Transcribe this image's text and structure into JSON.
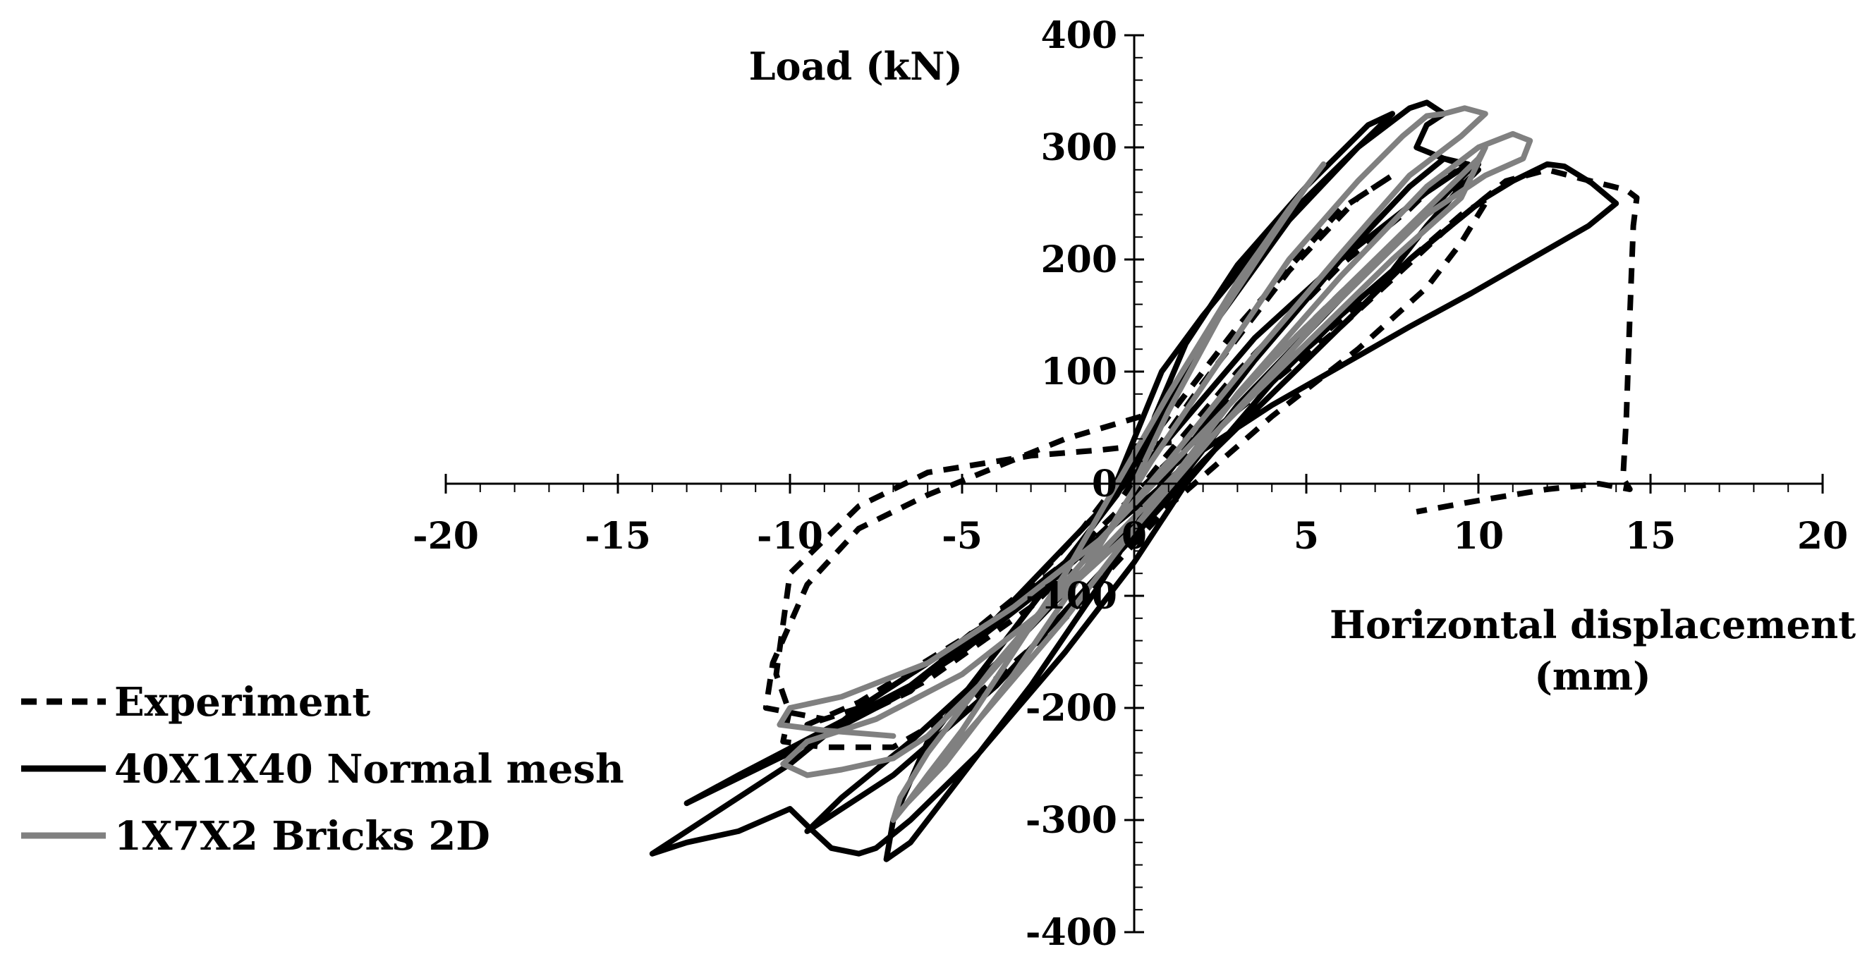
{
  "chart_data": {
    "type": "line",
    "title": "",
    "xlabel": "Horizontal displacement (mm)",
    "xlabel_lines": [
      "Horizontal displacement",
      "(mm)"
    ],
    "ylabel": "Load (kN)",
    "xlim": [
      -20,
      20
    ],
    "ylim": [
      -400,
      400
    ],
    "x_ticks": [
      -20,
      -15,
      -10,
      -5,
      0,
      5,
      10,
      15,
      20
    ],
    "y_ticks": [
      -400,
      -300,
      -200,
      -100,
      0,
      100,
      200,
      300,
      400
    ],
    "x_tick_labels": [
      "-20",
      "-15",
      "-10",
      "-5",
      "0",
      "5",
      "10",
      "15",
      "20"
    ],
    "y_tick_labels": [
      "-400",
      "-300",
      "-200",
      "-100",
      "0",
      "100",
      "200",
      "300",
      "400"
    ],
    "grid": false,
    "legend_position": "bottom-left",
    "series": [
      {
        "name": "Experiment",
        "color": "#000000",
        "dash": "dashed",
        "points": [
          [
            -0.3,
            -10
          ],
          [
            2,
            90
          ],
          [
            4.5,
            190
          ],
          [
            6.5,
            255
          ],
          [
            7.5,
            275
          ],
          [
            6,
            245
          ],
          [
            3,
            140
          ],
          [
            0.5,
            40
          ],
          [
            -1.5,
            -40
          ],
          [
            -3,
            -90
          ],
          [
            -5,
            -140
          ],
          [
            -6.5,
            -185
          ],
          [
            -7.5,
            -200
          ],
          [
            -6,
            -175
          ],
          [
            -3,
            -110
          ],
          [
            -1,
            -50
          ],
          [
            0.8,
            20
          ],
          [
            3,
            100
          ],
          [
            6,
            195
          ],
          [
            8,
            245
          ],
          [
            9,
            275
          ],
          [
            10,
            285
          ],
          [
            9,
            255
          ],
          [
            6,
            170
          ],
          [
            3,
            80
          ],
          [
            0,
            -10
          ],
          [
            -2,
            -70
          ],
          [
            -5,
            -140
          ],
          [
            -8,
            -200
          ],
          [
            -9.5,
            -215
          ],
          [
            -8,
            -195
          ],
          [
            -4,
            -120
          ],
          [
            -1,
            -45
          ],
          [
            2,
            40
          ],
          [
            6,
            140
          ],
          [
            9,
            225
          ],
          [
            10.8,
            270
          ],
          [
            12,
            280
          ],
          [
            13,
            272
          ],
          [
            14.3,
            262
          ],
          [
            14.6,
            255
          ],
          [
            14.5,
            230
          ],
          [
            14.4,
            150
          ],
          [
            14.3,
            60
          ],
          [
            14.2,
            5
          ],
          [
            14.4,
            -5
          ],
          [
            13.5,
            0
          ],
          [
            12,
            -5
          ],
          [
            10,
            -15
          ],
          [
            8.2,
            -25
          ]
        ]
      },
      {
        "name": "Experiment",
        "color": "#000000",
        "dash": "dashed",
        "points": [
          [
            -10,
            -200
          ],
          [
            -10.2,
            -230
          ],
          [
            -9,
            -235
          ],
          [
            -7,
            -235
          ],
          [
            -5,
            -200
          ],
          [
            -2,
            -120
          ],
          [
            1,
            -20
          ],
          [
            4,
            60
          ],
          [
            6.5,
            120
          ],
          [
            8.5,
            175
          ],
          [
            9.5,
            215
          ],
          [
            10.3,
            255
          ],
          [
            9.5,
            240
          ],
          [
            8,
            200
          ],
          [
            5,
            120
          ],
          [
            2,
            40
          ],
          [
            -1,
            30
          ],
          [
            -3,
            25
          ],
          [
            -6,
            10
          ],
          [
            -8,
            -20
          ],
          [
            -10,
            -80
          ],
          [
            -10.4,
            -170
          ],
          [
            -10,
            -205
          ]
        ]
      },
      {
        "name": "Experiment",
        "color": "#000000",
        "dash": "dashed",
        "points": [
          [
            0.2,
            60
          ],
          [
            -2,
            40
          ],
          [
            -4,
            15
          ],
          [
            -6,
            -10
          ],
          [
            -8,
            -40
          ],
          [
            -9.5,
            -90
          ],
          [
            -10.5,
            -160
          ],
          [
            -10.7,
            -200
          ],
          [
            -9,
            -210
          ]
        ]
      },
      {
        "name": "40X1X40 Normal mesh",
        "color": "#000000",
        "dash": "solid",
        "points": [
          [
            0,
            0
          ],
          [
            0.6,
            60
          ],
          [
            1.5,
            125
          ],
          [
            3,
            195
          ],
          [
            5,
            265
          ],
          [
            6.8,
            320
          ],
          [
            7.5,
            330
          ],
          [
            6.5,
            300
          ],
          [
            4.5,
            235
          ],
          [
            2.5,
            150
          ],
          [
            0.8,
            60
          ],
          [
            -0.5,
            -10
          ],
          [
            -2,
            -70
          ],
          [
            -4,
            -150
          ],
          [
            -6,
            -230
          ],
          [
            -7,
            -300
          ],
          [
            -7.2,
            -335
          ],
          [
            -6.5,
            -320
          ],
          [
            -5,
            -260
          ],
          [
            -3,
            -180
          ],
          [
            -1,
            -90
          ],
          [
            1,
            10
          ],
          [
            3.5,
            110
          ],
          [
            6,
            200
          ],
          [
            8,
            265
          ],
          [
            9,
            290
          ],
          [
            9.8,
            282
          ],
          [
            8.8,
            250
          ],
          [
            6,
            165
          ],
          [
            3,
            70
          ],
          [
            1,
            -10
          ],
          [
            -1.5,
            -80
          ],
          [
            -4,
            -160
          ],
          [
            -6.5,
            -230
          ],
          [
            -8.5,
            -280
          ],
          [
            -9.5,
            -310
          ],
          [
            -9,
            -300
          ],
          [
            -7,
            -260
          ],
          [
            -4,
            -180
          ],
          [
            -1,
            -80
          ],
          [
            2,
            20
          ],
          [
            5,
            110
          ],
          [
            8,
            200
          ],
          [
            10.2,
            255
          ],
          [
            11,
            270
          ],
          [
            12,
            285
          ],
          [
            12.5,
            283
          ],
          [
            13.3,
            268
          ],
          [
            14,
            250
          ],
          [
            13.2,
            230
          ],
          [
            11.5,
            200
          ],
          [
            9.8,
            170
          ],
          [
            8,
            140
          ],
          [
            6,
            105
          ],
          [
            4,
            70
          ],
          [
            2,
            30
          ],
          [
            0.5,
            -10
          ],
          [
            -1.5,
            -60
          ],
          [
            -4,
            -120
          ],
          [
            -6,
            -160
          ],
          [
            -8,
            -200
          ],
          [
            -10,
            -250
          ],
          [
            -12,
            -290
          ],
          [
            -14,
            -330
          ],
          [
            -13,
            -320
          ],
          [
            -11.5,
            -310
          ],
          [
            -10,
            -290
          ],
          [
            -9.5,
            -305
          ],
          [
            -8.8,
            -325
          ],
          [
            -8,
            -330
          ],
          [
            -7.5,
            -325
          ],
          [
            -6.5,
            -300
          ],
          [
            -4.5,
            -240
          ],
          [
            -2,
            -150
          ],
          [
            0,
            -70
          ],
          [
            1.5,
            0
          ],
          [
            4,
            90
          ],
          [
            6,
            150
          ],
          [
            7.5,
            190
          ],
          [
            8.5,
            230
          ],
          [
            9.5,
            265
          ],
          [
            10,
            280
          ]
        ]
      },
      {
        "name": "40X1X40 Normal mesh",
        "color": "#000000",
        "dash": "solid",
        "points": [
          [
            -0.8,
            -20
          ],
          [
            0.8,
            100
          ],
          [
            2,
            150
          ],
          [
            4,
            225
          ],
          [
            6.5,
            300
          ],
          [
            8,
            335
          ],
          [
            8.5,
            340
          ],
          [
            9,
            330
          ],
          [
            8.5,
            320
          ],
          [
            8.2,
            300
          ],
          [
            9,
            290
          ],
          [
            9.7,
            285
          ],
          [
            8.5,
            260
          ],
          [
            6,
            200
          ],
          [
            3.5,
            130
          ],
          [
            1,
            40
          ],
          [
            -1.5,
            -40
          ],
          [
            -4,
            -120
          ],
          [
            -6.5,
            -180
          ],
          [
            -9,
            -220
          ],
          [
            -11.5,
            -260
          ],
          [
            -13,
            -285
          ],
          [
            -12,
            -270
          ],
          [
            -10,
            -240
          ],
          [
            -7.5,
            -200
          ],
          [
            -5,
            -150
          ],
          [
            -2.5,
            -90
          ],
          [
            0,
            -20
          ]
        ]
      },
      {
        "name": "1X7X2 Bricks 2D",
        "color": "#808080",
        "dash": "solid",
        "points": [
          [
            0,
            0
          ],
          [
            1,
            65
          ],
          [
            2.5,
            150
          ],
          [
            4,
            220
          ],
          [
            5,
            265
          ],
          [
            5.5,
            285
          ],
          [
            4.5,
            245
          ],
          [
            3,
            180
          ],
          [
            1,
            80
          ],
          [
            -0.5,
            0
          ],
          [
            -2,
            -80
          ],
          [
            -3.5,
            -150
          ],
          [
            -5,
            -220
          ],
          [
            -6,
            -260
          ],
          [
            -6.6,
            -285
          ],
          [
            -5.5,
            -250
          ],
          [
            -3.5,
            -170
          ],
          [
            -1.5,
            -80
          ],
          [
            0.5,
            20
          ],
          [
            2.5,
            110
          ],
          [
            4.5,
            200
          ],
          [
            6.5,
            270
          ],
          [
            7.8,
            310
          ],
          [
            8.5,
            328
          ],
          [
            9,
            330
          ],
          [
            9.6,
            335
          ],
          [
            10.2,
            330
          ],
          [
            9.5,
            310
          ],
          [
            8,
            275
          ],
          [
            6,
            205
          ],
          [
            3.5,
            115
          ],
          [
            1,
            20
          ],
          [
            -1.5,
            -70
          ],
          [
            -4,
            -160
          ],
          [
            -6,
            -240
          ],
          [
            -6.8,
            -280
          ],
          [
            -7,
            -300
          ],
          [
            -6.2,
            -270
          ],
          [
            -4.5,
            -210
          ],
          [
            -2,
            -120
          ],
          [
            0.5,
            -20
          ],
          [
            3,
            80
          ],
          [
            6,
            185
          ],
          [
            8.5,
            265
          ],
          [
            10,
            300
          ],
          [
            11,
            312
          ],
          [
            11.5,
            306
          ],
          [
            11.3,
            290
          ],
          [
            10.2,
            275
          ],
          [
            8.5,
            240
          ],
          [
            5.5,
            150
          ],
          [
            2.5,
            50
          ],
          [
            0,
            -40
          ],
          [
            -2.5,
            -110
          ],
          [
            -5,
            -170
          ],
          [
            -7.5,
            -210
          ],
          [
            -9.5,
            -230
          ],
          [
            -10.2,
            -250
          ],
          [
            -9.5,
            -260
          ],
          [
            -8.5,
            -255
          ],
          [
            -7,
            -245
          ],
          [
            -6,
            -225
          ],
          [
            -4.5,
            -180
          ],
          [
            -2.5,
            -110
          ],
          [
            0,
            -30
          ],
          [
            2.5,
            50
          ],
          [
            5,
            125
          ],
          [
            7.5,
            200
          ],
          [
            9.5,
            255
          ],
          [
            10.2,
            300
          ],
          [
            10,
            290
          ],
          [
            8.5,
            245
          ],
          [
            6.5,
            185
          ],
          [
            4,
            110
          ],
          [
            1.5,
            30
          ],
          [
            -1,
            -50
          ],
          [
            -3.5,
            -110
          ],
          [
            -6,
            -160
          ],
          [
            -8.5,
            -190
          ],
          [
            -10,
            -200
          ],
          [
            -10.3,
            -215
          ],
          [
            -9,
            -220
          ],
          [
            -7,
            -225
          ]
        ]
      }
    ],
    "legend": [
      {
        "label": "Experiment",
        "color": "#000000",
        "dash": "dashed"
      },
      {
        "label": "40X1X40 Normal mesh",
        "color": "#000000",
        "dash": "solid"
      },
      {
        "label": "1X7X2 Bricks 2D",
        "color": "#808080",
        "dash": "solid"
      }
    ]
  }
}
